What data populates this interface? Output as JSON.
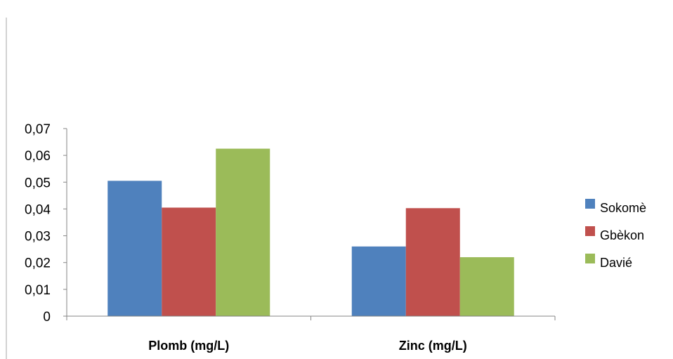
{
  "chart_data": {
    "type": "bar",
    "categories": [
      "Plomb (mg/L)",
      "Zinc (mg/L)"
    ],
    "series": [
      {
        "name": "Sokomè",
        "values": [
          0.0505,
          0.026
        ],
        "color": "#4F81BD"
      },
      {
        "name": "Gbèkon",
        "values": [
          0.0405,
          0.0403
        ],
        "color": "#C0504D"
      },
      {
        "name": "Davié",
        "values": [
          0.0625,
          0.022
        ],
        "color": "#9BBB59"
      }
    ],
    "y_ticks": [
      "0",
      "0,01",
      "0,02",
      "0,03",
      "0,04",
      "0,05",
      "0,06",
      "0,07"
    ],
    "ylim": [
      0,
      0.07
    ],
    "grid": false,
    "legend_position": "right"
  }
}
